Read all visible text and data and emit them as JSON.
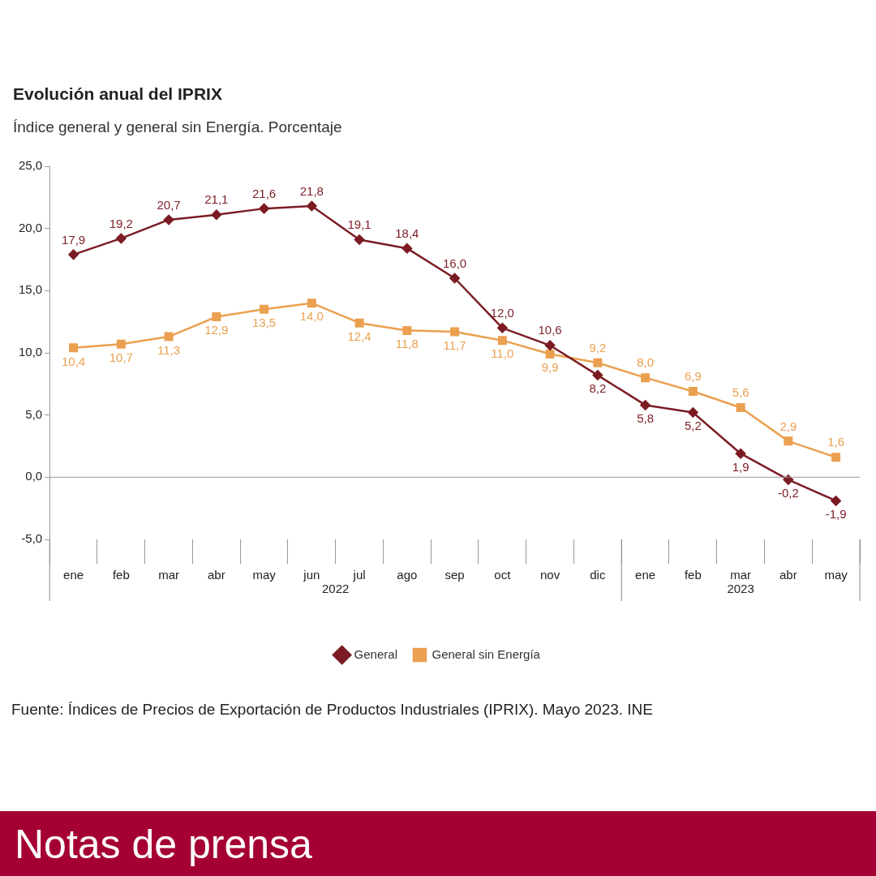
{
  "chart_data": {
    "type": "line",
    "title": "Evolución anual del IPRIX",
    "subtitle": "Índice general y general sin Energía. Porcentaje",
    "categories": [
      "ene",
      "feb",
      "mar",
      "abr",
      "may",
      "jun",
      "jul",
      "ago",
      "sep",
      "oct",
      "nov",
      "dic",
      "ene",
      "feb",
      "mar",
      "abr",
      "may"
    ],
    "series": [
      {
        "name": "General",
        "color": "#7b1c24",
        "marker": "diamond",
        "values": [
          17.9,
          19.2,
          20.7,
          21.1,
          21.6,
          21.8,
          19.1,
          18.4,
          16.0,
          12.0,
          10.6,
          8.2,
          5.8,
          5.2,
          1.9,
          -0.2,
          -1.9
        ],
        "value_labels": [
          "17,9",
          "19,2",
          "20,7",
          "21,1",
          "21,6",
          "21,8",
          "19,1",
          "18,4",
          "16,0",
          "12,0",
          "10,6",
          "8,2",
          "5,8",
          "5,2",
          "1,9",
          "-0,2",
          "-1,9"
        ]
      },
      {
        "name": "General sin Energía",
        "color": "#eba050",
        "marker": "square",
        "values": [
          10.4,
          10.7,
          11.3,
          12.9,
          13.5,
          14.0,
          12.4,
          11.8,
          11.7,
          11.0,
          9.9,
          9.2,
          8.0,
          6.9,
          5.6,
          2.9,
          1.6
        ],
        "value_labels": [
          "10,4",
          "10,7",
          "11,3",
          "12,9",
          "13,5",
          "14,0",
          "12,4",
          "11,8",
          "11,7",
          "11,0",
          "9,9",
          "9,2",
          "8,0",
          "6,9",
          "5,6",
          "2,9",
          "1,6"
        ]
      }
    ],
    "ylim": [
      -5,
      25
    ],
    "yticks": [
      {
        "value": -5,
        "label": "-5,0"
      },
      {
        "value": 0,
        "label": "0,0"
      },
      {
        "value": 5,
        "label": "5,0"
      },
      {
        "value": 10,
        "label": "10,0"
      },
      {
        "value": 15,
        "label": "15,0"
      },
      {
        "value": 20,
        "label": "20,0"
      },
      {
        "value": 25,
        "label": "25,0"
      }
    ],
    "grid": false,
    "legend": "bottom",
    "ref_lines": [
      {
        "axis": "y",
        "value": 0,
        "color": "#999999"
      }
    ],
    "annotations": [
      "2022",
      "2023",
      "Fuente: Índices de Precios de Exportación de Productos Industriales (IPRIX).  Mayo 2023. INE",
      "Notas de prensa"
    ]
  }
}
